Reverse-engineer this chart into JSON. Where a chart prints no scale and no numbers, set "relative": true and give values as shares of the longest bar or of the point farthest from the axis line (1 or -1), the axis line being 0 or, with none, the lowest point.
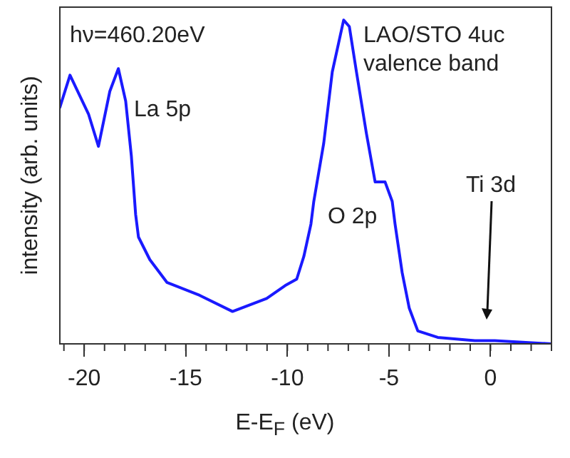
{
  "chart_data": {
    "type": "line",
    "xlabel": "E-E$_{F}$ (eV)",
    "ylabel": "intensity (arb. units)",
    "relative": true,
    "xlim": [
      -21.2,
      3
    ],
    "xticks": [
      -20,
      -15,
      -10,
      -5,
      0
    ],
    "grid": false,
    "legend": false,
    "marker": "none",
    "line_style": "solid",
    "x": [
      -21.2,
      -20.7,
      -19.79,
      -19.3,
      -18.74,
      -18.32,
      -17.96,
      -17.68,
      -17.47,
      -17.33,
      -16.77,
      -15.93,
      -14.32,
      -12.7,
      -11.02,
      -10.11,
      -9.54,
      -9.19,
      -8.84,
      -8.7,
      -8.21,
      -7.79,
      -7.23,
      -6.95,
      -6.6,
      -6.11,
      -5.68,
      -5.19,
      -4.84,
      -4.7,
      -4.35,
      -4.0,
      -3.58,
      -2.6,
      -0.77,
      -0.14,
      0.21,
      3.0
    ],
    "series": [
      {
        "color": "#1a1aff",
        "values": [
          0.73,
          0.83,
          0.71,
          0.61,
          0.78,
          0.85,
          0.75,
          0.58,
          0.4,
          0.33,
          0.26,
          0.19,
          0.15,
          0.1,
          0.14,
          0.18,
          0.2,
          0.27,
          0.37,
          0.44,
          0.62,
          0.84,
          1.0,
          0.98,
          0.84,
          0.65,
          0.5,
          0.5,
          0.44,
          0.37,
          0.22,
          0.11,
          0.04,
          0.02,
          0.01,
          0.01,
          0.01,
          0.0
        ]
      }
    ],
    "annotations": [
      "hν=460.20eV",
      "LAO/STO 4uc",
      "valence band",
      "La 5p",
      "O 2p",
      "Ti 3d"
    ]
  }
}
